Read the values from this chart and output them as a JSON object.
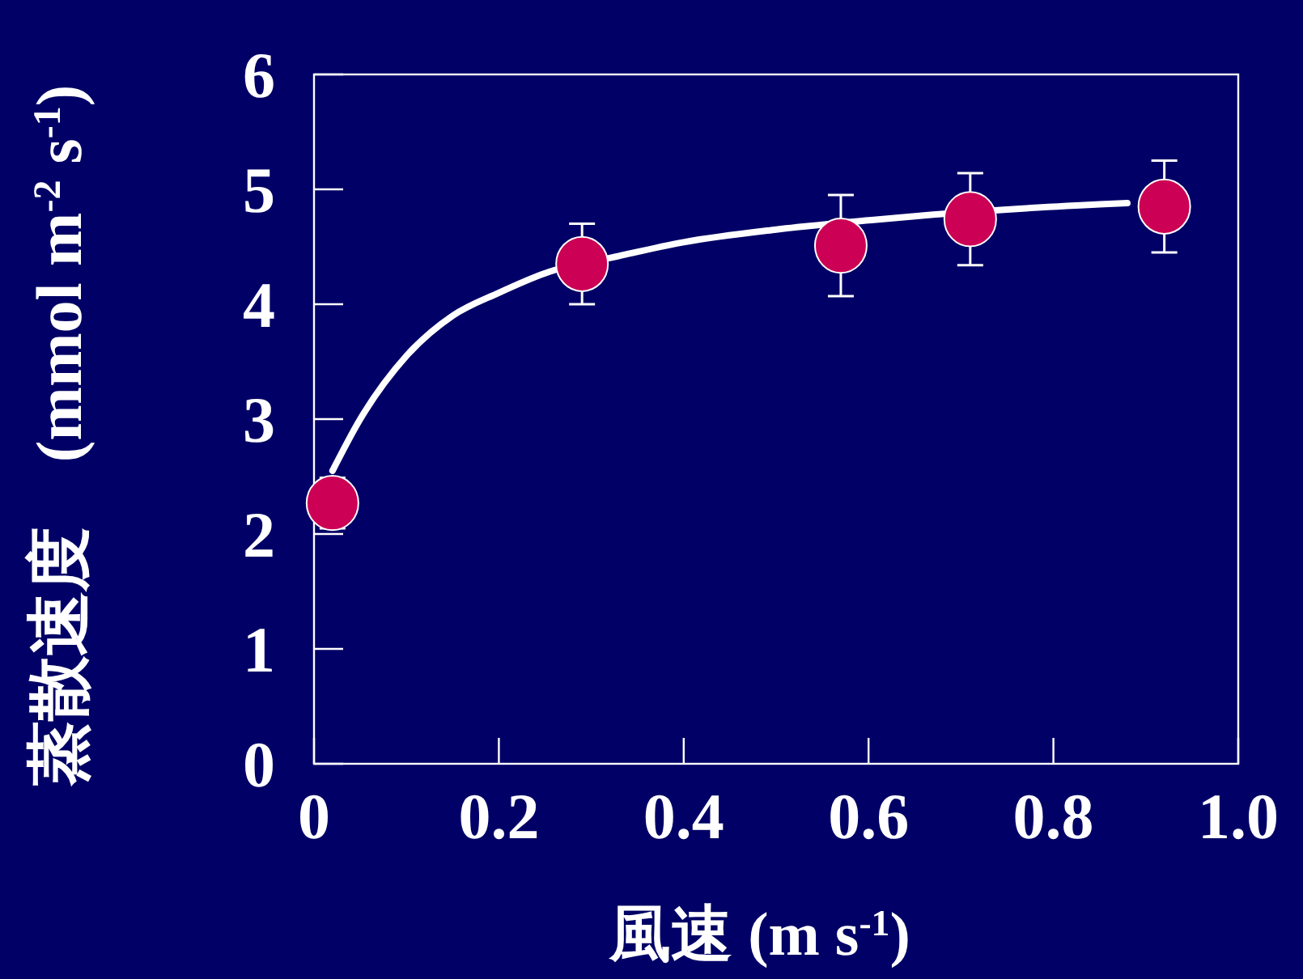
{
  "chart_data": {
    "type": "scatter",
    "xlabel": "風速 (m s$^{-1}$)",
    "ylabel": "蒸散速度　(mmol m$^{-2}$ s$^{-1}$)",
    "xlim": [
      0,
      1
    ],
    "xticks": [
      0,
      0.2,
      0.4,
      0.6,
      0.8,
      {
        "value": 1,
        "label": "1.0"
      }
    ],
    "ylim": [
      0,
      6
    ],
    "yticks": [
      0,
      1,
      2,
      3,
      4,
      5,
      6
    ],
    "grid": false,
    "marker": "circle",
    "series": [
      {
        "type": "line",
        "color": "#ffffff",
        "marker": "none",
        "line_style": "solid",
        "x": [
          0.02,
          0.05,
          0.1,
          0.15,
          0.2,
          0.25,
          0.33,
          0.4,
          0.5,
          0.6,
          0.67,
          0.76,
          0.85,
          0.88
        ],
        "values": [
          2.55,
          3.0,
          3.55,
          3.9,
          4.1,
          4.27,
          4.42,
          4.54,
          4.65,
          4.73,
          4.78,
          4.83,
          4.87,
          4.88
        ]
      },
      {
        "type": "scatter",
        "color": "#cc0055",
        "x": [
          0.02,
          0.29,
          0.57,
          0.71,
          0.92
        ],
        "values": [
          2.27,
          4.35,
          4.51,
          4.74,
          4.85
        ],
        "errors": [
          0.22,
          0.35,
          0.44,
          0.4,
          0.4
        ]
      }
    ]
  }
}
